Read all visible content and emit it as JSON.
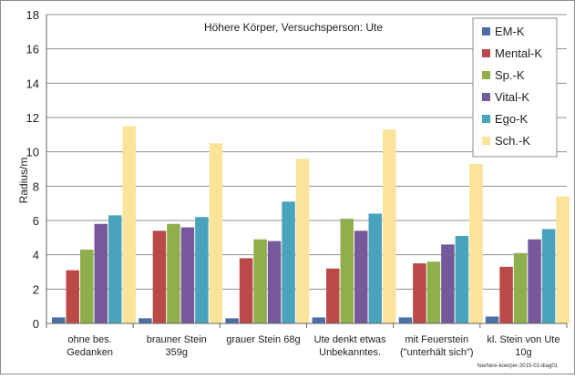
{
  "chart_data": {
    "type": "bar",
    "title": "Höhere Körper, Versuchsperson: Ute",
    "ylabel": "Radius/m",
    "xlabel": "",
    "ylim": [
      0,
      18
    ],
    "yticks": [
      0,
      2,
      4,
      6,
      8,
      10,
      12,
      14,
      16,
      18
    ],
    "grid": true,
    "legend_position": "top-right",
    "categories": [
      [
        "ohne bes.",
        "Gedanken"
      ],
      [
        "brauner Stein",
        "359g"
      ],
      [
        "grauer Stein 68g"
      ],
      [
        "Ute denkt etwas",
        "Unbekanntes."
      ],
      [
        "mit Feuerstein",
        "(\"unterhält sich\")"
      ],
      [
        "kl. Stein von Ute",
        "10g"
      ]
    ],
    "series": [
      {
        "name": "EM-K",
        "color": "#4a6fa5",
        "values": [
          0.35,
          0.3,
          0.3,
          0.35,
          0.35,
          0.4
        ]
      },
      {
        "name": "Mental-K",
        "color": "#b94a48",
        "values": [
          3.1,
          5.4,
          3.8,
          3.2,
          3.5,
          3.3
        ]
      },
      {
        "name": "Sp.-K",
        "color": "#8fae4c",
        "values": [
          4.3,
          5.8,
          4.9,
          6.1,
          3.6,
          4.1
        ]
      },
      {
        "name": "Vital-K",
        "color": "#76599a",
        "values": [
          5.8,
          5.6,
          4.8,
          5.4,
          4.6,
          4.9
        ]
      },
      {
        "name": "Ego-K",
        "color": "#4aa3bc",
        "values": [
          6.3,
          6.2,
          7.1,
          6.4,
          5.1,
          5.5
        ]
      },
      {
        "name": "Sch.-K",
        "color": "#fbe39a",
        "values": [
          11.5,
          10.5,
          9.6,
          11.3,
          9.3,
          7.4
        ]
      }
    ]
  },
  "footer_note": "hoehere-koerper-2015-02-diag01"
}
